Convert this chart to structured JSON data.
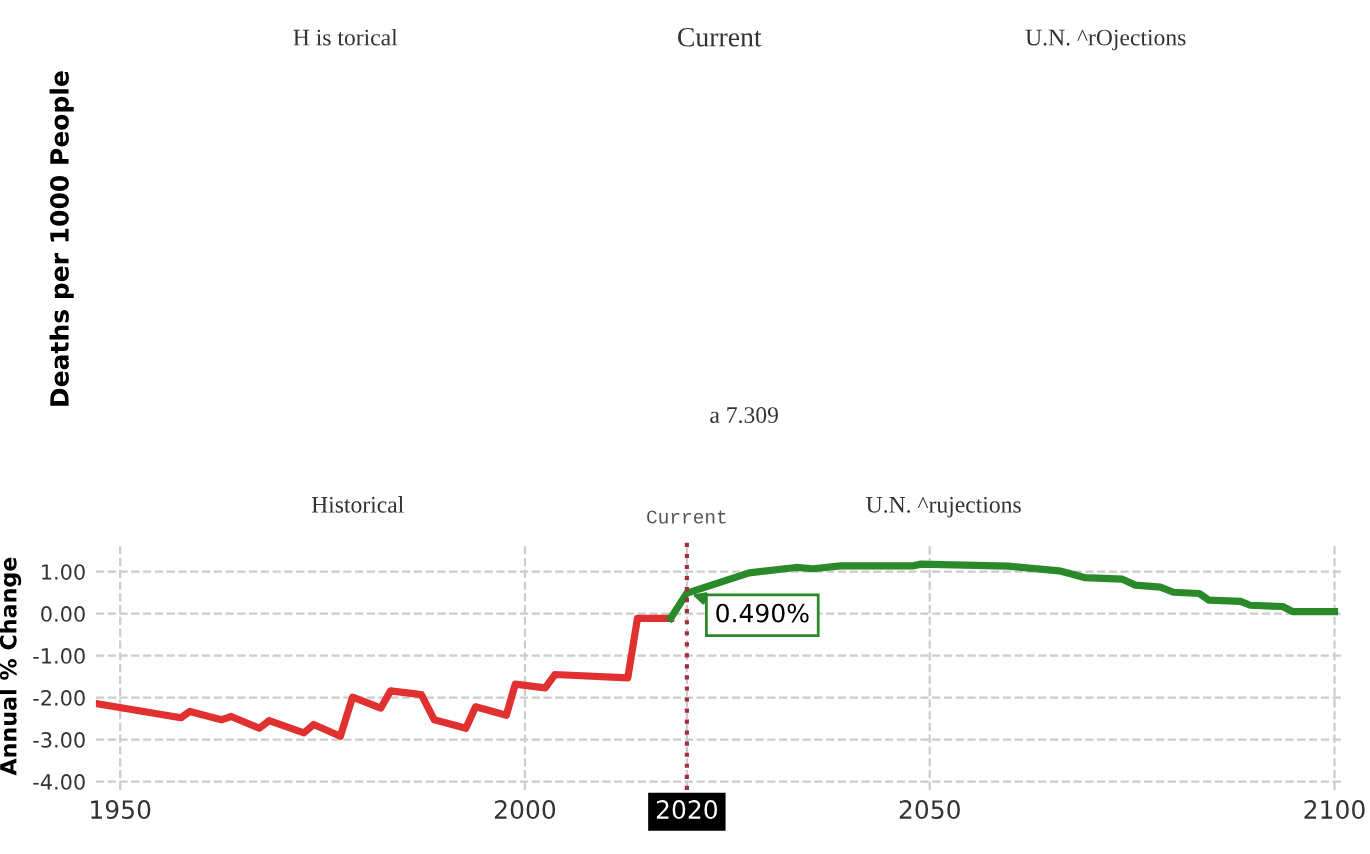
{
  "chart_data": [
    {
      "type": "other",
      "ylabel": "Deaths per 1000 People",
      "annotations": [
        "H is torical",
        "Current",
        "U.N. ^rOjections",
        "a 7.309"
      ]
    },
    {
      "type": "line",
      "ylabel": "Annual % Change",
      "xlim": [
        1947,
        2101
      ],
      "ylim": [
        -4.2,
        1.7
      ],
      "xticks": [
        1950,
        2000,
        2020,
        2050,
        2100
      ],
      "yticks": [
        {
          "value": 1,
          "label": "1.00"
        },
        {
          "value": 0,
          "label": "0.00"
        },
        {
          "value": -1,
          "label": "-1.00"
        },
        {
          "value": -2,
          "label": "-2.00"
        },
        {
          "value": -3,
          "label": "-3.00"
        },
        {
          "value": -4,
          "label": "-4.00"
        }
      ],
      "grid": true,
      "marker": "none",
      "line_style": "solid",
      "series": [
        {
          "color": "#e03030",
          "x": [
            1947,
            1957.5,
            1958.6,
            1962.5,
            1963.7,
            1967.2,
            1968.4,
            1972.7,
            1973.9,
            1977.2,
            1978.7,
            1982.2,
            1983.4,
            1987.2,
            1988.8,
            1992.7,
            1993.9,
            1997.7,
            1998.8,
            2002.5,
            2003.7,
            2012.7,
            2013.9,
            2018
          ],
          "values": [
            -2.14,
            -2.48,
            -2.33,
            -2.53,
            -2.45,
            -2.73,
            -2.55,
            -2.84,
            -2.64,
            -2.92,
            -1.99,
            -2.25,
            -1.84,
            -1.93,
            -2.53,
            -2.73,
            -2.22,
            -2.42,
            -1.68,
            -1.77,
            -1.45,
            -1.53,
            -0.11,
            -0.11
          ]
        },
        {
          "color": "#2a8a2a",
          "x": [
            2018,
            2020,
            2027.7,
            2033.5,
            2035.6,
            2039,
            2048,
            2048.9,
            2059.7,
            2066,
            2069.1,
            2073.8,
            2075.4,
            2078.5,
            2080.1,
            2083.3,
            2084.5,
            2088.4,
            2089.6,
            2093.6,
            2094.8,
            2100
          ],
          "values": [
            -0.11,
            0.49,
            0.97,
            1.1,
            1.07,
            1.14,
            1.14,
            1.18,
            1.13,
            1.02,
            0.86,
            0.82,
            0.68,
            0.63,
            0.51,
            0.48,
            0.32,
            0.29,
            0.2,
            0.17,
            0.05,
            0.05
          ]
        }
      ],
      "ref_lines": [
        {
          "axis": "x",
          "value": 2020,
          "label": "Current",
          "color": "#a03040",
          "line_style": "dotted"
        }
      ],
      "annotations": [
        "Historical",
        "U.N. ^rujections",
        {
          "text": "0.490%",
          "x": 2020,
          "y": 0.49
        }
      ]
    }
  ]
}
